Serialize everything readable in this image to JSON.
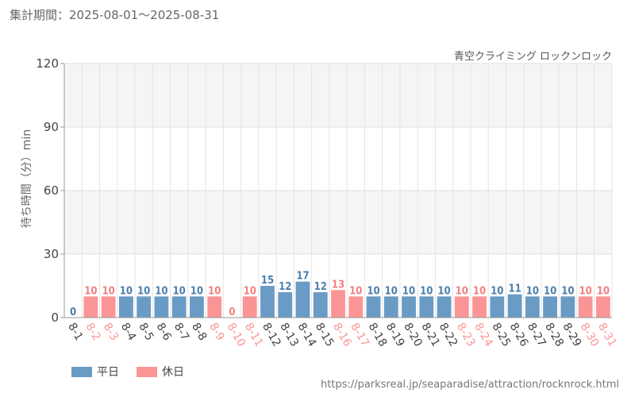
{
  "period_label": "集計期間：2025-08-01～2025-08-31",
  "attraction_name": "青空クライミング ロックンロック",
  "source_url": "https://parksreal.jp/seaparadise/attraction/rocknrock.html",
  "legend": {
    "weekday_label": "平日",
    "holiday_label": "休日"
  },
  "colors": {
    "weekday": "#6a9bc4",
    "holiday": "#fb9595",
    "weekday_text": "#4a7fae",
    "holiday_text": "#f08080"
  },
  "chart_data": {
    "type": "bar",
    "title": "",
    "xlabel": "",
    "ylabel": "待ち時間（分）min",
    "ylim": [
      0,
      120
    ],
    "yticks": [
      0,
      30,
      60,
      90,
      120
    ],
    "grid": true,
    "legend_position": "bottom-left",
    "categories": [
      "8-1",
      "8-2",
      "8-3",
      "8-4",
      "8-5",
      "8-6",
      "8-7",
      "8-8",
      "8-9",
      "8-10",
      "8-11",
      "8-12",
      "8-13",
      "8-14",
      "8-15",
      "8-16",
      "8-17",
      "8-18",
      "8-19",
      "8-20",
      "8-21",
      "8-22",
      "8-23",
      "8-24",
      "8-25",
      "8-26",
      "8-27",
      "8-28",
      "8-29",
      "8-30",
      "8-31"
    ],
    "values": [
      0,
      10,
      10,
      10,
      10,
      10,
      10,
      10,
      10,
      0,
      10,
      15,
      12,
      17,
      12,
      13,
      10,
      10,
      10,
      10,
      10,
      10,
      10,
      10,
      10,
      11,
      10,
      10,
      10,
      10,
      10
    ],
    "day_type": [
      "weekday",
      "holiday",
      "holiday",
      "weekday",
      "weekday",
      "weekday",
      "weekday",
      "weekday",
      "holiday",
      "holiday",
      "holiday",
      "weekday",
      "weekday",
      "weekday",
      "weekday",
      "holiday",
      "holiday",
      "weekday",
      "weekday",
      "weekday",
      "weekday",
      "weekday",
      "holiday",
      "holiday",
      "weekday",
      "weekday",
      "weekday",
      "weekday",
      "weekday",
      "holiday",
      "holiday"
    ]
  }
}
